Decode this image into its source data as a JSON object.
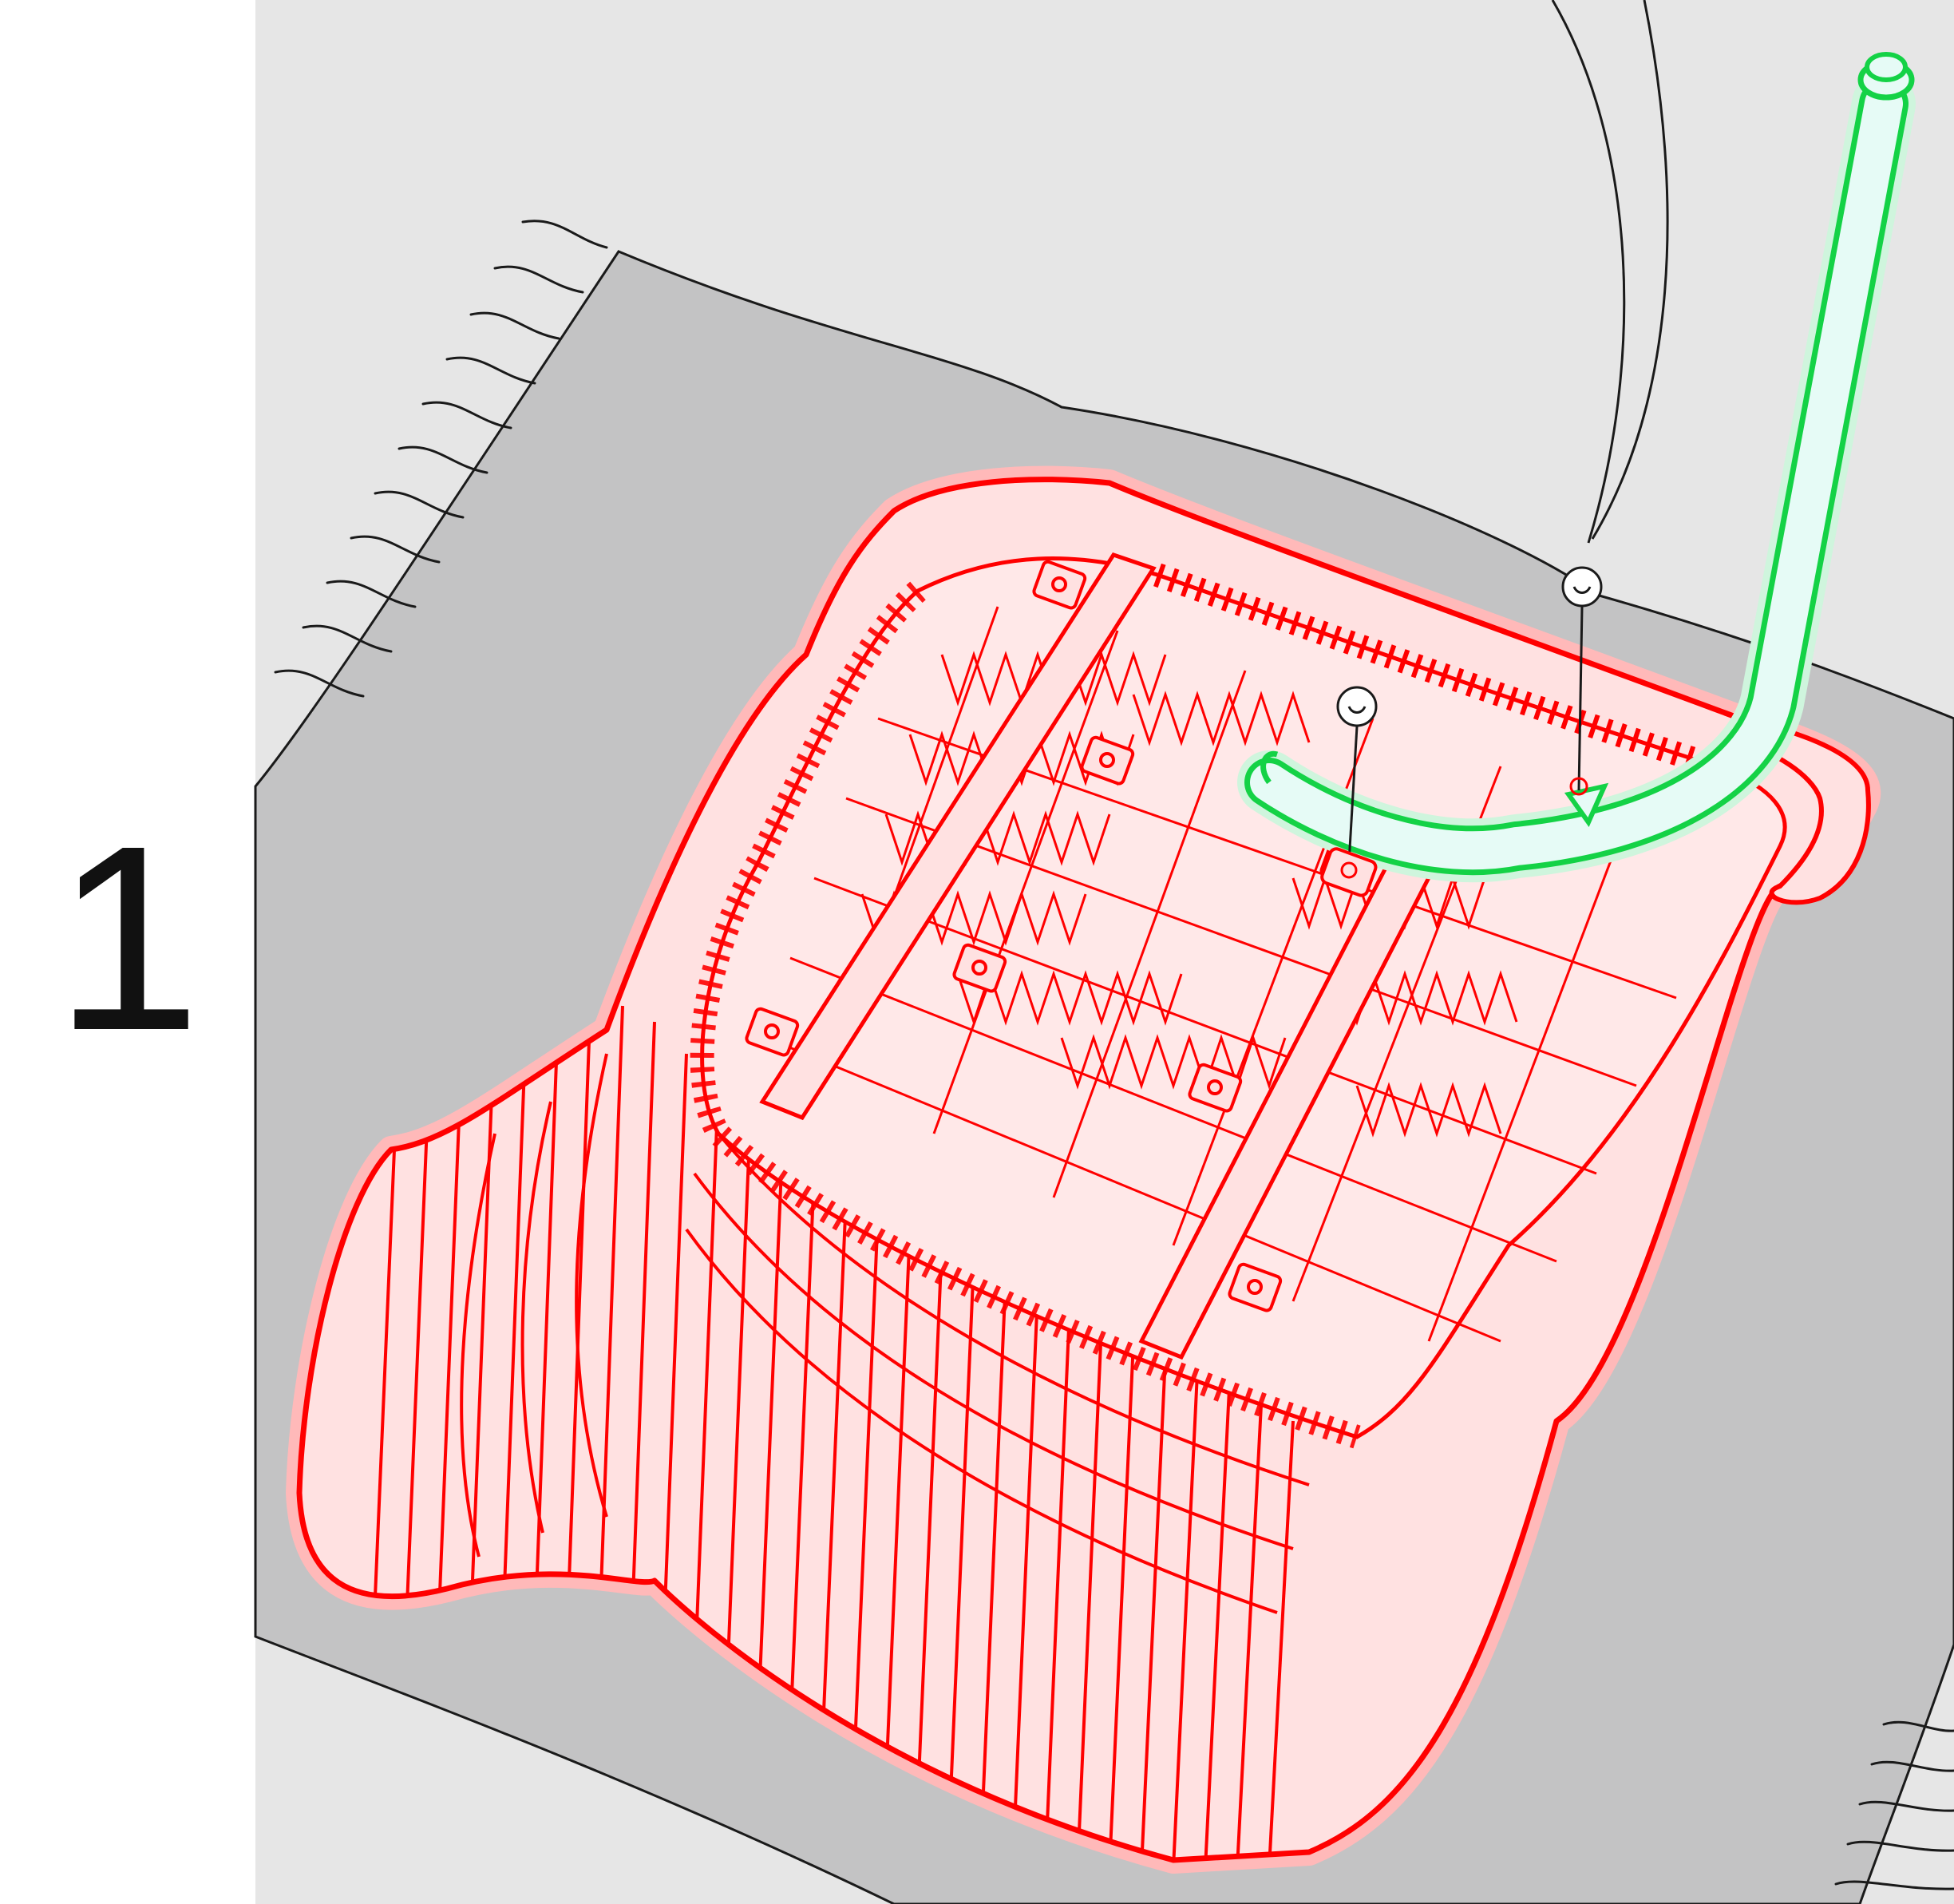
{
  "step": {
    "number": "1"
  },
  "colors": {
    "background_panel": "#e6e6e6",
    "mat": "#c3c3c4",
    "highlight_red": "#ff0000",
    "highlight_red_fill": "#ffe1e1",
    "highlight_green": "#14d246",
    "highlight_green_fill": "#e6fbf6",
    "outline": "#1a1a1a"
  },
  "icons": [
    "seat-shell",
    "armrest-tube",
    "screw-icon"
  ]
}
